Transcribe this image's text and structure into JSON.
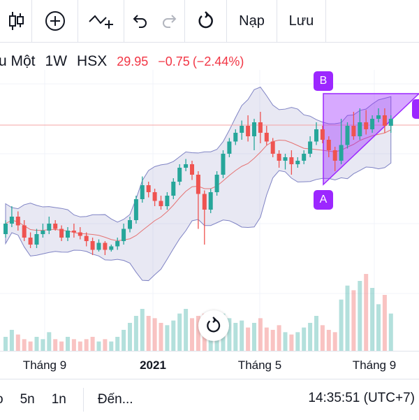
{
  "toolbar": {
    "icons": [
      "candles-icon",
      "add-circle-icon",
      "indicator-icon",
      "undo-icon",
      "redo-icon",
      "reset-icon"
    ],
    "load_label": "Nạp",
    "save_label": "Lưu"
  },
  "symbol": {
    "name": "u Một",
    "interval": "1W",
    "exchange": "HSX",
    "price": "29.95",
    "change": "−0.75",
    "change_pct": "(−2.44%)",
    "change_color": "#f23645"
  },
  "drawing": {
    "marker_b": "B",
    "marker_a": "A",
    "color": "#9c27ff"
  },
  "x_axis": {
    "ticks": [
      "Tháng 9",
      "2021",
      "Tháng 5",
      "Tháng 9"
    ]
  },
  "bottom_bar": {
    "ranges": [
      "5n",
      "1n"
    ],
    "goto_label": "Đến...",
    "clock": "14:35:51 (UTC+7)"
  },
  "chart_data": {
    "type": "candlestick",
    "up_color": "#26a69a",
    "down_color": "#ef5350",
    "candles": [
      {
        "o": 42,
        "c": 48,
        "h": 50,
        "l": 40
      },
      {
        "o": 48,
        "c": 52,
        "h": 58,
        "l": 46
      },
      {
        "o": 52,
        "c": 47,
        "h": 55,
        "l": 44
      },
      {
        "o": 47,
        "c": 40,
        "h": 50,
        "l": 38
      },
      {
        "o": 40,
        "c": 36,
        "h": 43,
        "l": 34
      },
      {
        "o": 36,
        "c": 42,
        "h": 45,
        "l": 34
      },
      {
        "o": 42,
        "c": 44,
        "h": 48,
        "l": 40
      },
      {
        "o": 44,
        "c": 48,
        "h": 52,
        "l": 42
      },
      {
        "o": 48,
        "c": 45,
        "h": 50,
        "l": 44
      },
      {
        "o": 45,
        "c": 40,
        "h": 47,
        "l": 38
      },
      {
        "o": 40,
        "c": 44,
        "h": 46,
        "l": 38
      },
      {
        "o": 44,
        "c": 43,
        "h": 48,
        "l": 40
      },
      {
        "o": 43,
        "c": 41,
        "h": 46,
        "l": 39
      },
      {
        "o": 41,
        "c": 38,
        "h": 43,
        "l": 35
      },
      {
        "o": 38,
        "c": 33,
        "h": 40,
        "l": 30
      },
      {
        "o": 33,
        "c": 37,
        "h": 39,
        "l": 32
      },
      {
        "o": 37,
        "c": 33,
        "h": 38,
        "l": 30
      },
      {
        "o": 33,
        "c": 35,
        "h": 36,
        "l": 32
      },
      {
        "o": 35,
        "c": 38,
        "h": 40,
        "l": 33
      },
      {
        "o": 38,
        "c": 45,
        "h": 48,
        "l": 36
      },
      {
        "o": 45,
        "c": 50,
        "h": 52,
        "l": 43
      },
      {
        "o": 50,
        "c": 62,
        "h": 64,
        "l": 48
      },
      {
        "o": 62,
        "c": 70,
        "h": 75,
        "l": 60
      },
      {
        "o": 70,
        "c": 66,
        "h": 72,
        "l": 63
      },
      {
        "o": 66,
        "c": 61,
        "h": 68,
        "l": 58
      },
      {
        "o": 61,
        "c": 58,
        "h": 64,
        "l": 56
      },
      {
        "o": 58,
        "c": 64,
        "h": 66,
        "l": 56
      },
      {
        "o": 64,
        "c": 72,
        "h": 74,
        "l": 62
      },
      {
        "o": 72,
        "c": 80,
        "h": 82,
        "l": 70
      },
      {
        "o": 80,
        "c": 82,
        "h": 85,
        "l": 78
      },
      {
        "o": 82,
        "c": 76,
        "h": 84,
        "l": 73
      },
      {
        "o": 76,
        "c": 65,
        "h": 78,
        "l": 45
      },
      {
        "o": 65,
        "c": 56,
        "h": 67,
        "l": 36
      },
      {
        "o": 56,
        "c": 66,
        "h": 68,
        "l": 54
      },
      {
        "o": 66,
        "c": 76,
        "h": 78,
        "l": 64
      },
      {
        "o": 76,
        "c": 88,
        "h": 90,
        "l": 74
      },
      {
        "o": 88,
        "c": 95,
        "h": 97,
        "l": 86
      },
      {
        "o": 95,
        "c": 100,
        "h": 102,
        "l": 93
      },
      {
        "o": 100,
        "c": 104,
        "h": 107,
        "l": 96
      },
      {
        "o": 104,
        "c": 98,
        "h": 110,
        "l": 95
      },
      {
        "o": 98,
        "c": 106,
        "h": 108,
        "l": 90
      },
      {
        "o": 106,
        "c": 100,
        "h": 112,
        "l": 94
      },
      {
        "o": 100,
        "c": 95,
        "h": 104,
        "l": 93
      },
      {
        "o": 95,
        "c": 88,
        "h": 97,
        "l": 86
      },
      {
        "o": 88,
        "c": 84,
        "h": 90,
        "l": 80
      },
      {
        "o": 84,
        "c": 86,
        "h": 88,
        "l": 79
      },
      {
        "o": 86,
        "c": 82,
        "h": 90,
        "l": 76
      },
      {
        "o": 82,
        "c": 84,
        "h": 86,
        "l": 80
      },
      {
        "o": 84,
        "c": 88,
        "h": 90,
        "l": 82
      },
      {
        "o": 88,
        "c": 95,
        "h": 98,
        "l": 86
      },
      {
        "o": 95,
        "c": 102,
        "h": 106,
        "l": 93
      },
      {
        "o": 102,
        "c": 96,
        "h": 104,
        "l": 94
      },
      {
        "o": 96,
        "c": 90,
        "h": 98,
        "l": 86
      },
      {
        "o": 90,
        "c": 84,
        "h": 92,
        "l": 78
      },
      {
        "o": 84,
        "c": 93,
        "h": 108,
        "l": 82
      },
      {
        "o": 93,
        "c": 104,
        "h": 106,
        "l": 91
      },
      {
        "o": 104,
        "c": 98,
        "h": 112,
        "l": 96
      },
      {
        "o": 98,
        "c": 106,
        "h": 114,
        "l": 96
      },
      {
        "o": 106,
        "c": 102,
        "h": 113,
        "l": 99
      },
      {
        "o": 102,
        "c": 108,
        "h": 110,
        "l": 100
      },
      {
        "o": 108,
        "c": 110,
        "h": 114,
        "l": 106
      },
      {
        "o": 110,
        "c": 104,
        "h": 114,
        "l": 100
      },
      {
        "o": 104,
        "c": 108,
        "h": 110,
        "l": 100
      }
    ],
    "volumes": [
      6,
      9,
      7,
      5,
      4,
      6,
      5,
      8,
      5,
      4,
      6,
      5,
      4,
      5,
      6,
      4,
      5,
      4,
      6,
      9,
      12,
      15,
      18,
      15,
      14,
      12,
      11,
      13,
      16,
      18,
      14,
      15,
      16,
      12,
      13,
      16,
      14,
      12,
      13,
      10,
      12,
      14,
      10,
      9,
      11,
      8,
      7,
      8,
      10,
      12,
      15,
      11,
      9,
      8,
      22,
      28,
      26,
      30,
      33,
      27,
      20,
      24,
      16
    ]
  }
}
